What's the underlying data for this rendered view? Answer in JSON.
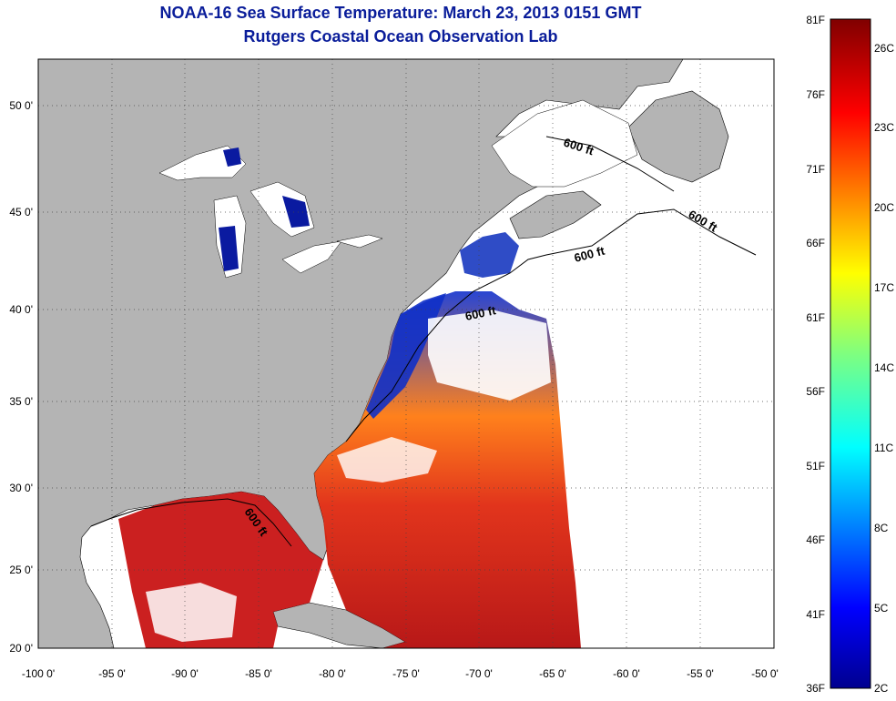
{
  "title": {
    "line1": "NOAA-16 Sea Surface Temperature:  March 23, 2013 0151 GMT",
    "line2": "Rutgers Coastal Ocean Observation Lab"
  },
  "axes": {
    "x_ticks": [
      "-100 0'",
      "-95 0'",
      "-90 0'",
      "-85 0'",
      "-80 0'",
      "-75 0'",
      "-70 0'",
      "-65 0'",
      "-60 0'",
      "-55 0'",
      "-50 0'"
    ],
    "y_ticks": [
      "20 0'",
      "25 0'",
      "30 0'",
      "35 0'",
      "40 0'",
      "45 0'",
      "50 0'"
    ]
  },
  "contour_label": "600 ft",
  "colorbar": {
    "fahrenheit": [
      "81F",
      "76F",
      "71F",
      "66F",
      "61F",
      "56F",
      "51F",
      "46F",
      "41F",
      "36F"
    ],
    "celsius": [
      "26C",
      "23C",
      "20C",
      "17C",
      "14C",
      "11C",
      "8C",
      "5C",
      "2C"
    ]
  },
  "colors": {
    "land": "#b4b4b4",
    "title": "#0a1d9a",
    "warm": "#d01010",
    "cold": "#0a1aa0"
  }
}
